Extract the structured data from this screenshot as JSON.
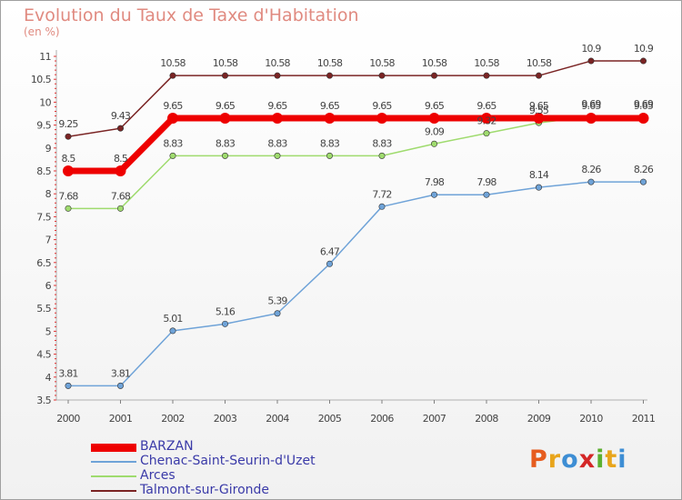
{
  "title": "Evolution du Taux de Taxe d'Habitation",
  "unit_label": "(en %)",
  "logo": {
    "text": "Proxiti",
    "letters": [
      "P",
      "r",
      "o",
      "x",
      "i",
      "t",
      "i"
    ],
    "colors": [
      "#e65c1e",
      "#e8a51c",
      "#3e8ed4",
      "#d42727",
      "#5cb030",
      "#e8a51c",
      "#3e8ed4"
    ]
  },
  "chart_data": {
    "type": "line",
    "x": [
      "2000",
      "2001",
      "2002",
      "2003",
      "2004",
      "2005",
      "2006",
      "2007",
      "2008",
      "2009",
      "2010",
      "2011"
    ],
    "y_ticks": [
      "3.5",
      "4",
      "4.5",
      "5",
      "5.5",
      "6",
      "6.5",
      "7",
      "7.5",
      "8",
      "8.5",
      "9",
      "9.5",
      "10",
      "10.5",
      "11"
    ],
    "ylim": [
      3.5,
      11
    ],
    "legend_position": "bottom-left",
    "grid": false,
    "series": [
      {
        "name": "BARZAN",
        "color": "#ee0000",
        "values": [
          8.5,
          8.5,
          9.65,
          9.65,
          9.65,
          9.65,
          9.65,
          9.65,
          9.65,
          9.65,
          9.65,
          9.65
        ],
        "labels": [
          "8.5",
          "8.5",
          "9.65",
          "9.65",
          "9.65",
          "9.65",
          "9.65",
          "9.65",
          "9.65",
          "9.65",
          "9.65",
          "9.65"
        ]
      },
      {
        "name": "Chenac-Saint-Seurin-d'Uzet",
        "color": "#6fa3d8",
        "values": [
          3.81,
          3.81,
          5.01,
          5.16,
          5.39,
          6.47,
          7.72,
          7.98,
          7.98,
          8.14,
          8.26,
          8.26
        ],
        "labels": [
          "3.81",
          "3.81",
          "5.01",
          "5.16",
          "5.39",
          "6.47",
          "7.72",
          "7.98",
          "7.98",
          "8.14",
          "8.26",
          "8.26"
        ]
      },
      {
        "name": "Arces",
        "color": "#9fdb6e",
        "values": [
          7.68,
          7.68,
          8.83,
          8.83,
          8.83,
          8.83,
          8.83,
          9.09,
          9.32,
          9.55,
          9.69,
          9.69
        ],
        "labels": [
          "7.68",
          "7.68",
          "8.83",
          "8.83",
          "8.83",
          "8.83",
          "8.83",
          "9.09",
          "9.32",
          "9.55",
          "9.69",
          "9.69"
        ]
      },
      {
        "name": "Talmont-sur-Gironde",
        "color": "#7a2424",
        "values": [
          9.25,
          9.43,
          10.58,
          10.58,
          10.58,
          10.58,
          10.58,
          10.58,
          10.58,
          10.58,
          10.9,
          10.9
        ],
        "labels": [
          "9.25",
          "9.43",
          "10.58",
          "10.58",
          "10.58",
          "10.58",
          "10.58",
          "10.58",
          "10.58",
          "10.58",
          "10.9",
          "10.9"
        ]
      }
    ]
  }
}
